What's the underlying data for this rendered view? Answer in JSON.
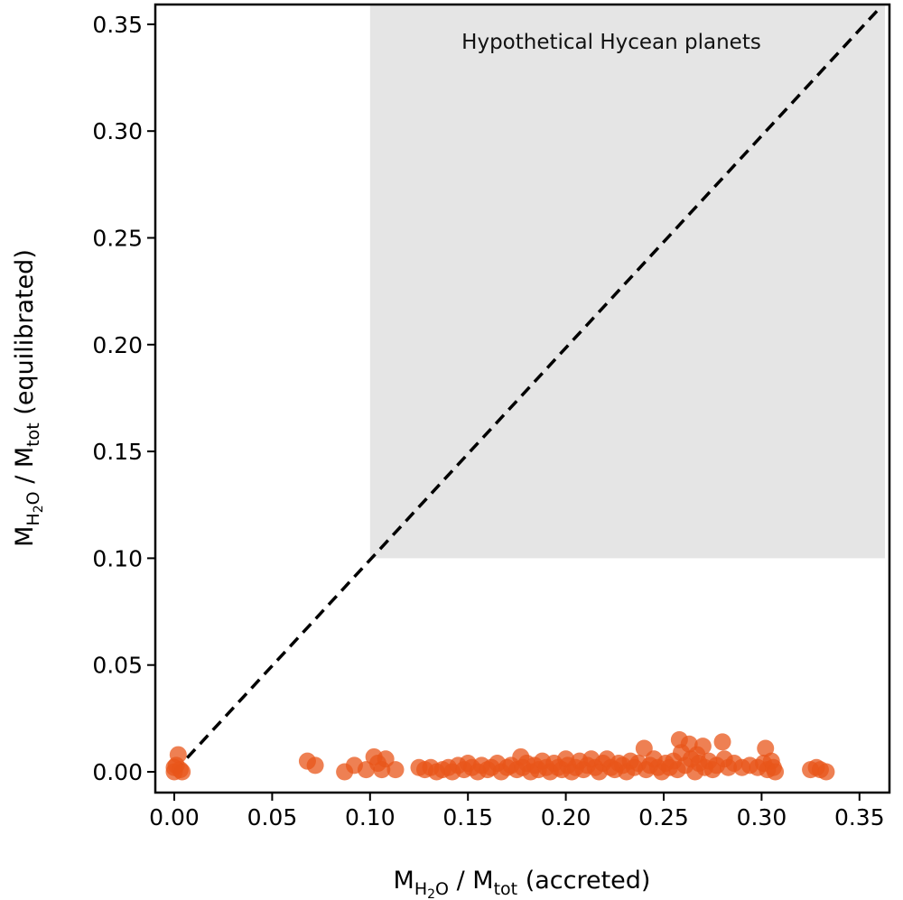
{
  "chart_data": {
    "type": "scatter",
    "title": "",
    "xlabel_parts": [
      {
        "t": "M",
        "sub": false
      },
      {
        "t": "H",
        "sub": true
      },
      {
        "t": "2",
        "subsub": true
      },
      {
        "t": "O",
        "sub": true
      },
      {
        "t": " / M",
        "sub": false
      },
      {
        "t": "tot",
        "sub": true
      },
      {
        "t": " (accreted)",
        "sub": false
      }
    ],
    "ylabel_parts": [
      {
        "t": "M",
        "sub": false
      },
      {
        "t": "H",
        "sub": true
      },
      {
        "t": "2",
        "subsub": true
      },
      {
        "t": "O",
        "sub": true
      },
      {
        "t": " / M",
        "sub": false
      },
      {
        "t": "tot",
        "sub": true
      },
      {
        "t": " (equilibrated)",
        "sub": false
      }
    ],
    "xlim": [
      -0.01,
      0.365
    ],
    "ylim": [
      -0.01,
      0.36
    ],
    "xticks": [
      "0.00",
      "0.05",
      "0.10",
      "0.15",
      "0.20",
      "0.25",
      "0.30",
      "0.35"
    ],
    "yticks": [
      "0.00",
      "0.05",
      "0.10",
      "0.15",
      "0.20",
      "0.25",
      "0.30",
      "0.35"
    ],
    "grid": false,
    "shaded_region": {
      "label": "Hypothetical Hycean planets",
      "x_min": 0.1,
      "y_min": 0.1,
      "color": "#e5e5e5"
    },
    "reference_line": {
      "type": "y=x",
      "style": "dashed",
      "color": "#000000"
    },
    "point_color": "#e8561a",
    "points": [
      [
        0.0,
        0.0
      ],
      [
        0.001,
        0.003
      ],
      [
        0.002,
        0.008
      ],
      [
        0.003,
        0.001
      ],
      [
        0.004,
        0.0
      ],
      [
        0.0,
        0.002
      ],
      [
        0.068,
        0.005
      ],
      [
        0.072,
        0.003
      ],
      [
        0.087,
        0.0
      ],
      [
        0.092,
        0.003
      ],
      [
        0.098,
        0.001
      ],
      [
        0.102,
        0.007
      ],
      [
        0.104,
        0.004
      ],
      [
        0.106,
        0.001
      ],
      [
        0.108,
        0.006
      ],
      [
        0.113,
        0.001
      ],
      [
        0.125,
        0.002
      ],
      [
        0.128,
        0.001
      ],
      [
        0.131,
        0.002
      ],
      [
        0.134,
        0.0
      ],
      [
        0.137,
        0.001
      ],
      [
        0.14,
        0.002
      ],
      [
        0.142,
        0.0
      ],
      [
        0.145,
        0.003
      ],
      [
        0.148,
        0.001
      ],
      [
        0.15,
        0.004
      ],
      [
        0.152,
        0.002
      ],
      [
        0.155,
        0.0
      ],
      [
        0.157,
        0.003
      ],
      [
        0.16,
        0.001
      ],
      [
        0.162,
        0.002
      ],
      [
        0.165,
        0.004
      ],
      [
        0.167,
        0.0
      ],
      [
        0.17,
        0.002
      ],
      [
        0.172,
        0.003
      ],
      [
        0.175,
        0.001
      ],
      [
        0.177,
        0.007
      ],
      [
        0.178,
        0.002
      ],
      [
        0.18,
        0.004
      ],
      [
        0.182,
        0.0
      ],
      [
        0.184,
        0.003
      ],
      [
        0.186,
        0.001
      ],
      [
        0.188,
        0.005
      ],
      [
        0.19,
        0.002
      ],
      [
        0.192,
        0.0
      ],
      [
        0.194,
        0.004
      ],
      [
        0.196,
        0.002
      ],
      [
        0.198,
        0.001
      ],
      [
        0.2,
        0.006
      ],
      [
        0.201,
        0.003
      ],
      [
        0.203,
        0.0
      ],
      [
        0.205,
        0.002
      ],
      [
        0.207,
        0.005
      ],
      [
        0.209,
        0.001
      ],
      [
        0.211,
        0.003
      ],
      [
        0.213,
        0.006
      ],
      [
        0.215,
        0.002
      ],
      [
        0.217,
        0.0
      ],
      [
        0.219,
        0.004
      ],
      [
        0.221,
        0.006
      ],
      [
        0.223,
        0.002
      ],
      [
        0.225,
        0.001
      ],
      [
        0.227,
        0.004
      ],
      [
        0.229,
        0.003
      ],
      [
        0.231,
        0.0
      ],
      [
        0.233,
        0.005
      ],
      [
        0.235,
        0.002
      ],
      [
        0.237,
        0.004
      ],
      [
        0.24,
        0.011
      ],
      [
        0.241,
        0.001
      ],
      [
        0.243,
        0.003
      ],
      [
        0.245,
        0.006
      ],
      [
        0.247,
        0.002
      ],
      [
        0.249,
        0.0
      ],
      [
        0.251,
        0.004
      ],
      [
        0.253,
        0.002
      ],
      [
        0.255,
        0.005
      ],
      [
        0.257,
        0.001
      ],
      [
        0.258,
        0.015
      ],
      [
        0.259,
        0.009
      ],
      [
        0.261,
        0.003
      ],
      [
        0.263,
        0.013
      ],
      [
        0.264,
        0.006
      ],
      [
        0.266,
        0.0
      ],
      [
        0.267,
        0.008
      ],
      [
        0.268,
        0.004
      ],
      [
        0.27,
        0.012
      ],
      [
        0.271,
        0.002
      ],
      [
        0.273,
        0.005
      ],
      [
        0.275,
        0.001
      ],
      [
        0.277,
        0.003
      ],
      [
        0.28,
        0.014
      ],
      [
        0.281,
        0.006
      ],
      [
        0.283,
        0.002
      ],
      [
        0.286,
        0.004
      ],
      [
        0.29,
        0.002
      ],
      [
        0.294,
        0.003
      ],
      [
        0.298,
        0.002
      ],
      [
        0.301,
        0.004
      ],
      [
        0.302,
        0.011
      ],
      [
        0.303,
        0.001
      ],
      [
        0.305,
        0.005
      ],
      [
        0.306,
        0.002
      ],
      [
        0.307,
        0.0
      ],
      [
        0.325,
        0.001
      ],
      [
        0.328,
        0.002
      ],
      [
        0.33,
        0.001
      ],
      [
        0.333,
        0.0
      ]
    ]
  }
}
